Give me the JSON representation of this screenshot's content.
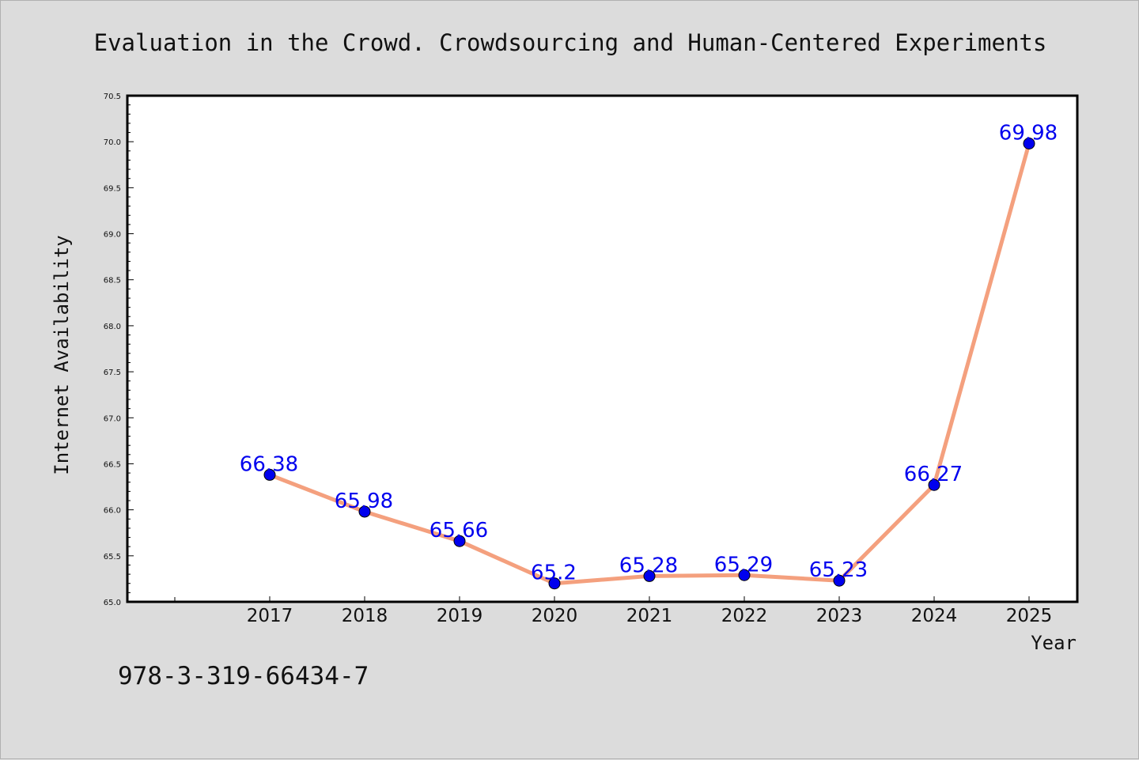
{
  "chart_data": {
    "type": "line",
    "title": "Evaluation in the Crowd. Crowdsourcing and Human-Centered Experiments",
    "xlabel": "Year",
    "ylabel": "Internet Availability",
    "categories": [
      "2017",
      "2018",
      "2019",
      "2020",
      "2021",
      "2022",
      "2023",
      "2024",
      "2025"
    ],
    "values": [
      66.38,
      65.98,
      65.66,
      65.2,
      65.28,
      65.29,
      65.23,
      66.27,
      69.98
    ],
    "data_labels": [
      "66.38",
      "65.98",
      "65.66",
      "65.2",
      "65.28",
      "65.29",
      "65.23",
      "66.27",
      "69.98"
    ],
    "ylim": [
      65.0,
      70.5
    ],
    "yticks": [
      "65.0",
      "65.5",
      "66.0",
      "66.5",
      "67.0",
      "67.5",
      "68.0",
      "68.5",
      "69.0",
      "69.5",
      "70.0",
      "70.5"
    ],
    "grid": false,
    "legend": "none",
    "line_color": "#f4a07e",
    "marker_color": "#0000ee"
  },
  "annotation": "978-3-319-66434-7"
}
